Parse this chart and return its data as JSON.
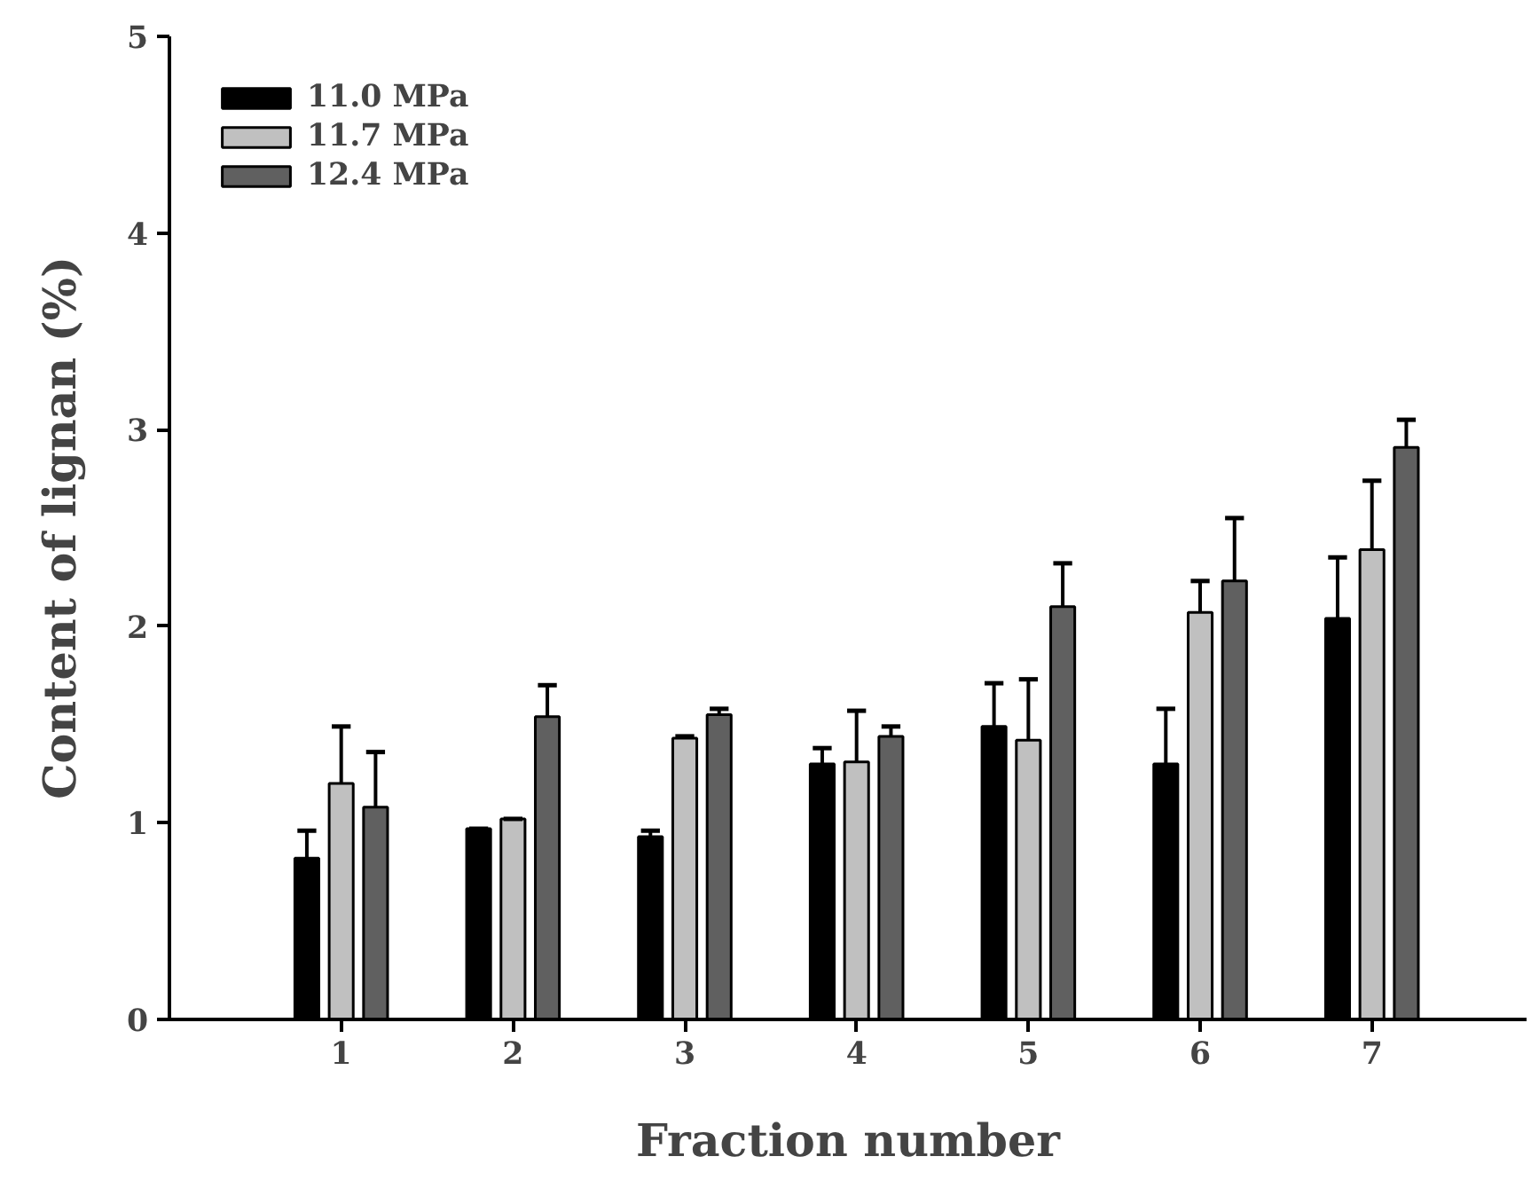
{
  "chart_data": {
    "type": "bar",
    "xlabel": "Fraction number",
    "ylabel": "Content of lignan (%)",
    "categories": [
      "1",
      "2",
      "3",
      "4",
      "5",
      "6",
      "7"
    ],
    "ylim": [
      0,
      5
    ],
    "yticks": [
      0,
      1,
      2,
      3,
      4,
      5
    ],
    "grid": false,
    "legend": "top left",
    "series": [
      {
        "name": "11.0 MPa",
        "color": "#000000",
        "values": [
          0.82,
          0.97,
          0.93,
          1.3,
          1.49,
          1.3,
          2.04
        ],
        "errors": [
          [
            0.82,
            0.96
          ],
          [
            0.97,
            0.97
          ],
          [
            0.93,
            0.96
          ],
          [
            1.3,
            1.38
          ],
          [
            1.49,
            1.71
          ],
          [
            1.3,
            1.58
          ],
          [
            2.04,
            2.35
          ]
        ]
      },
      {
        "name": "11.7 MPa",
        "color": "#c0c0c0",
        "values": [
          1.2,
          1.02,
          1.43,
          1.31,
          1.42,
          2.07,
          2.39
        ],
        "errors": [
          [
            1.2,
            1.49
          ],
          [
            1.02,
            1.02
          ],
          [
            1.43,
            1.44
          ],
          [
            1.31,
            1.57
          ],
          [
            1.42,
            1.73
          ],
          [
            2.07,
            2.23
          ],
          [
            2.39,
            2.74
          ]
        ]
      },
      {
        "name": "12.4 MPa",
        "color": "#606060",
        "values": [
          1.08,
          1.54,
          1.55,
          1.44,
          2.1,
          2.23,
          2.91
        ],
        "errors": [
          [
            1.08,
            1.36
          ],
          [
            1.54,
            1.7
          ],
          [
            1.55,
            1.58
          ],
          [
            1.44,
            1.49
          ],
          [
            2.1,
            2.32
          ],
          [
            2.23,
            2.55
          ],
          [
            2.91,
            3.05
          ]
        ]
      }
    ]
  }
}
